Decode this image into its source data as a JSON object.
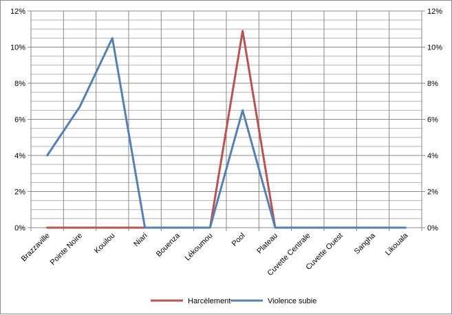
{
  "chart_data": {
    "type": "line",
    "title": "",
    "xlabel": "",
    "ylabel": "",
    "categories": [
      "Brazzaville",
      "Pointe Noire",
      "Kouilou",
      "Niari",
      "Bouenza",
      "Lékoumou",
      "Pool",
      "Plateau",
      "Cuvette Centrale",
      "Cuvette Ouest",
      "Sangha",
      "Likouala"
    ],
    "series": [
      {
        "name": "Harcèlement",
        "color": "#c0504d",
        "values": [
          0,
          0,
          0,
          0,
          0,
          0,
          10.9,
          0,
          0,
          0,
          0,
          0
        ]
      },
      {
        "name": "Violence subie",
        "color": "#4f81bd",
        "values": [
          4.0,
          6.7,
          10.5,
          0,
          0,
          0,
          6.5,
          0,
          0,
          0,
          0,
          0
        ]
      }
    ],
    "ylim": [
      0,
      12
    ],
    "yticks": [
      0,
      2,
      4,
      6,
      8,
      10,
      12
    ],
    "ytick_labels": [
      "0%",
      "2%",
      "4%",
      "6%",
      "8%",
      "10%",
      "12%"
    ],
    "secondary_yticks": [
      "0%",
      "2%",
      "4%",
      "6%",
      "8%",
      "10%",
      "12%"
    ],
    "grid": true,
    "legend_position": "bottom"
  }
}
